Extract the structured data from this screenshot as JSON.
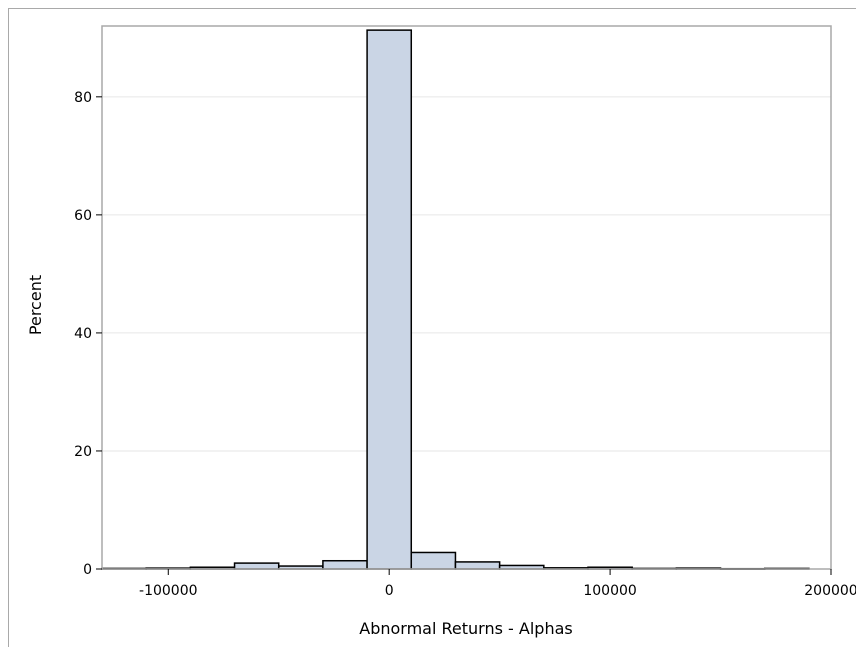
{
  "chart_data": {
    "type": "bar",
    "subtype": "histogram",
    "title": "",
    "xlabel": "Abnormal Returns - Alphas",
    "ylabel": "Percent",
    "xlim": [
      -130000,
      200000
    ],
    "ylim": [
      0,
      92
    ],
    "bin_width": 20000,
    "bins": [
      {
        "center": -120000,
        "value": 0.1
      },
      {
        "center": -100000,
        "value": 0.15
      },
      {
        "center": -80000,
        "value": 0.3
      },
      {
        "center": -60000,
        "value": 1.0
      },
      {
        "center": -40000,
        "value": 0.5
      },
      {
        "center": -20000,
        "value": 1.4
      },
      {
        "center": 0,
        "value": 91.3
      },
      {
        "center": 20000,
        "value": 2.8
      },
      {
        "center": 40000,
        "value": 1.2
      },
      {
        "center": 60000,
        "value": 0.6
      },
      {
        "center": 80000,
        "value": 0.2
      },
      {
        "center": 100000,
        "value": 0.3
      },
      {
        "center": 120000,
        "value": 0.1
      },
      {
        "center": 140000,
        "value": 0.15
      },
      {
        "center": 160000,
        "value": 0.05
      },
      {
        "center": 180000,
        "value": 0.1
      }
    ],
    "x_ticks": [
      -100000,
      0,
      100000,
      200000
    ],
    "x_tick_labels": [
      "-100000",
      "0",
      "100000",
      "200000"
    ],
    "y_ticks": [
      0,
      20,
      40,
      60,
      80
    ],
    "y_tick_labels": [
      "0",
      "20",
      "40",
      "60",
      "80"
    ],
    "grid": true,
    "bar_fill": "#cad5e5",
    "bar_stroke": "#000000",
    "grid_color": "#e6e6e6",
    "frame_color": "#a9a9a9"
  }
}
